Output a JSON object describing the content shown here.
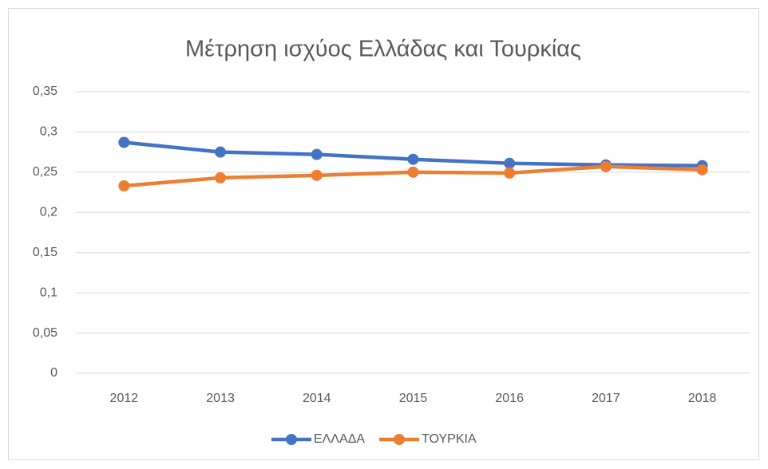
{
  "chart_data": {
    "type": "line",
    "title": "Μέτρηση ισχύος Ελλάδας και Τουρκίας",
    "categories": [
      "2012",
      "2013",
      "2014",
      "2015",
      "2016",
      "2017",
      "2018"
    ],
    "series": [
      {
        "name": "ΕΛΛΑΔΑ",
        "color": "#4472c4",
        "values": [
          0.287,
          0.275,
          0.272,
          0.266,
          0.261,
          0.259,
          0.258
        ]
      },
      {
        "name": "ΤΟΥΡΚΙΑ",
        "color": "#ed7d31",
        "values": [
          0.233,
          0.243,
          0.246,
          0.25,
          0.249,
          0.257,
          0.253
        ]
      }
    ],
    "ylim": [
      0,
      0.35
    ],
    "yticks": [
      0,
      {
        "value": 0.05,
        "label": "0,05"
      },
      {
        "value": 0.1,
        "label": "0,1"
      },
      {
        "value": 0.15,
        "label": "0,15"
      },
      {
        "value": 0.2,
        "label": "0,2"
      },
      {
        "value": 0.25,
        "label": "0,25"
      },
      {
        "value": 0.3,
        "label": "0,3"
      },
      {
        "value": 0.35,
        "label": "0,35"
      }
    ],
    "grid": true,
    "legend": "bottom"
  }
}
